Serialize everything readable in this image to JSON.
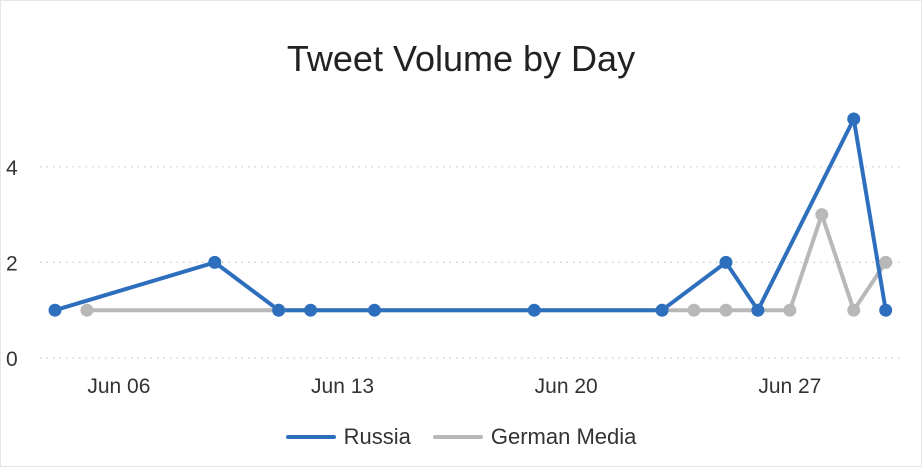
{
  "chart_data": {
    "type": "line",
    "title": "Tweet Volume by Day",
    "xlabel": "",
    "ylabel": "",
    "x_ticks": [
      "Jun 06",
      "Jun 13",
      "Jun 20",
      "Jun 27"
    ],
    "y_ticks": [
      "0",
      "2",
      "4"
    ],
    "ylim": [
      0,
      5.5
    ],
    "grid": "horizontal dotted",
    "legend_position": "bottom",
    "series": [
      {
        "name": "Russia",
        "color": "#2e6fbd",
        "points": [
          {
            "x": "Jun 04",
            "y": 1
          },
          {
            "x": "Jun 09",
            "y": 2
          },
          {
            "x": "Jun 11",
            "y": 1
          },
          {
            "x": "Jun 12",
            "y": 1
          },
          {
            "x": "Jun 14",
            "y": 1
          },
          {
            "x": "Jun 19",
            "y": 1
          },
          {
            "x": "Jun 23",
            "y": 1
          },
          {
            "x": "Jun 25",
            "y": 2
          },
          {
            "x": "Jun 26",
            "y": 1
          },
          {
            "x": "Jun 29",
            "y": 5
          },
          {
            "x": "Jun 30",
            "y": 1
          }
        ]
      },
      {
        "name": "German Media",
        "color": "#b8b8b8",
        "points": [
          {
            "x": "Jun 05",
            "y": 1
          },
          {
            "x": "Jun 11",
            "y": 1
          },
          {
            "x": "Jun 23",
            "y": 1
          },
          {
            "x": "Jun 24",
            "y": 1
          },
          {
            "x": "Jun 25",
            "y": 1
          },
          {
            "x": "Jun 26",
            "y": 1
          },
          {
            "x": "Jun 27",
            "y": 1
          },
          {
            "x": "Jun 28",
            "y": 3
          },
          {
            "x": "Jun 29",
            "y": 1
          },
          {
            "x": "Jun 30",
            "y": 2
          }
        ]
      }
    ]
  }
}
